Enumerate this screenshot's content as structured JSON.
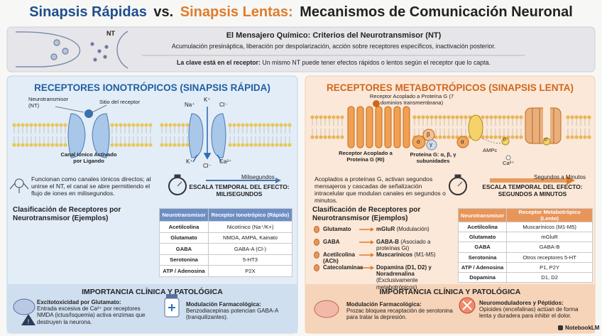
{
  "header": {
    "title_parts": [
      "Sinapsis Rápidas",
      "vs.",
      "Sinapsis Lentas:",
      "Mecanismos de Comunicación Neuronal"
    ]
  },
  "intro": {
    "nt_label": "NT",
    "heading": "El Mensajero Químico: Criterios del Neurotransmisor (NT)",
    "text": "Acumulación presináptica, liberación por despolarización, acción sobre receptores específicos, inactivación posterior.",
    "key_bold": "La clave está en el receptor:",
    "key_text": "Un mismo NT puede tener efectos rápidos o lentos según el receptor que lo capta."
  },
  "ionotropic": {
    "heading": "RECEPTORES IONOTRÓPICOS (SINAPSIS RÁPIDA)",
    "labels": {
      "nt": "Neurotransmisor (NT)",
      "site": "Sitio del receptor",
      "channel": "Canal Iónico Activado por Ligando"
    },
    "ions": [
      "Na⁺",
      "K⁺",
      "Cl⁻",
      "K⁺",
      "Cl⁻",
      "Ca²⁺"
    ],
    "description": "Funcionan como canales iónicos directos; al unirse el NT, el canal se abre permitiendo el flujo de iones en milisegundos.",
    "time_arrow": "Milisegundos",
    "time_scale": "ESCALA TEMPORAL DEL EFECTO: MILISEGUNDOS",
    "classification": "Clasificación de Receptores por Neurotransmisor (Ejemplos)",
    "table": {
      "header": [
        "Neurotransmisor",
        "Receptor Ionotrópico (Rápido)"
      ],
      "rows": [
        [
          "Acetilcolina",
          "Nicotínico (Na⁺/K+)"
        ],
        [
          "Glutamato",
          "NMDA, AMPA, Kainato"
        ],
        [
          "GABA",
          "GABA-A (Cl-)"
        ],
        [
          "Serotonina",
          "5-HT3"
        ],
        [
          "ATP / Adenosina",
          "P2X"
        ]
      ]
    },
    "clinical": {
      "heading": "IMPORTANCIA CLÍNICA Y PATOLÓGICA",
      "items": [
        {
          "title": "Excitotoxicidad por Glutamato:",
          "text": "Entrada excesiva de Ca²⁺ por receptores NMDA (ictus/Isquemia) activa enzimas que destruyen la neurona."
        },
        {
          "title": "Modulación Farmacológica:",
          "text": "Benzodiacepinas potencian GABA-A (tranquilizantes)."
        }
      ]
    }
  },
  "metabotropic": {
    "heading": "RECEPTORES METABOTRÓPICOS (SINAPSIS LENTA)",
    "labels": {
      "gpcr": "Receptor Acoplado a Proteína G (7 dominios transmembrana)",
      "gpcr_short": "Receptor Acoplado a Proteína G (RI)",
      "gprotein": "Proteína G: α, β, γ subunidades",
      "ampc": "AMPc",
      "ca": "Ca²⁺"
    },
    "subunits": [
      "α",
      "β",
      "γ",
      "α"
    ],
    "phospho": [
      "P",
      "P"
    ],
    "description": "Acoplados a proteínas G, activan segundos mensajeros y cascadas de señalización intracelular que modulan canales en segundos o minutos.",
    "time_arrow": "Segundos a Minutos",
    "time_scale": "ESCALA TEMPORAL DEL EFECTO: SEGUNDOS A MINUTOS",
    "classification": "Clasificación de Receptores por Neurotransmisor (Ejemplos)",
    "list": [
      {
        "nt": "Glutamato",
        "receptor": "mGluR",
        "note": "(Modulación)"
      },
      {
        "nt": "GABA",
        "receptor": "GABA-B",
        "note": "(Asociado a proteínas Gi)"
      },
      {
        "nt": "Acetilcolina (ACh)",
        "receptor": "Muscarínicos",
        "note": "(M1-M5)"
      },
      {
        "nt": "Catecolaminas",
        "receptor": "Dopamina (D1, D2) y Noradrenalina",
        "note": "(Exclusivamente metabotrópicos)"
      }
    ],
    "table": {
      "header": [
        "Neurotransmisor",
        "Receptor Metabotrópico (Lento)"
      ],
      "rows": [
        [
          "Acetilcolina",
          "Muscarínicos (M1-M5)"
        ],
        [
          "Glutamato",
          "mGluR"
        ],
        [
          "GABA",
          "GABA-B"
        ],
        [
          "Serotonina",
          "Otros receptores 5-HT"
        ],
        [
          "ATP / Adenosina",
          "P1, P2Y"
        ],
        [
          "Dopamina",
          "D1, D2"
        ]
      ]
    },
    "clinical": {
      "heading": "IMPORTANCIA CLÍNICA Y PATOLÓGICA",
      "items": [
        {
          "title": "Modulación Farmacológica:",
          "text": "Prozac bloquea recaptación de serotonina para tratar la depresión."
        },
        {
          "title": "Neuromoduladores y Péptidos:",
          "text": "Opioides (encefalinas) actúan de forma lenta y duradera para inhibir el dolor."
        }
      ]
    }
  },
  "footer": {
    "brand": "NotebookLM"
  }
}
